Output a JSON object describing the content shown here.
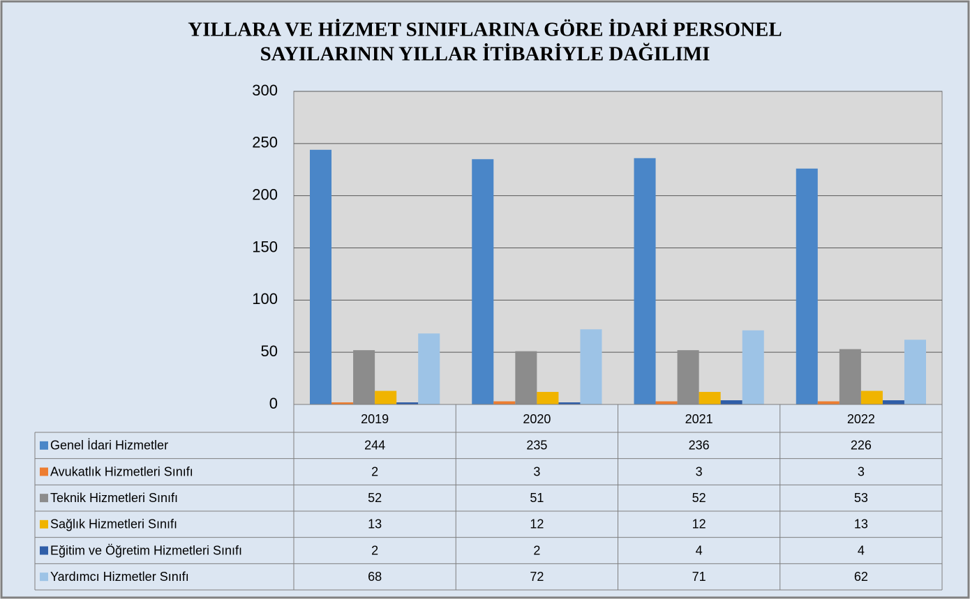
{
  "chart_data": {
    "type": "bar",
    "title": [
      "YILLARA VE HİZMET SINIFLARINA GÖRE İDARİ PERSONEL",
      "SAYILARININ YILLAR İTİBARİYLE DAĞILIMI"
    ],
    "categories": [
      "2019",
      "2020",
      "2021",
      "2022"
    ],
    "series": [
      {
        "name": "Genel İdari Hizmetler",
        "color": "#4a86c8",
        "values": [
          244,
          235,
          236,
          226
        ]
      },
      {
        "name": "Avukatlık Hizmetleri Sınıfı",
        "color": "#ed7d31",
        "values": [
          2,
          3,
          3,
          3
        ]
      },
      {
        "name": "Teknik Hizmetleri Sınıfı",
        "color": "#8c8c8c",
        "values": [
          52,
          51,
          52,
          53
        ]
      },
      {
        "name": "Sağlık Hizmetleri Sınıfı",
        "color": "#f0b400",
        "values": [
          13,
          12,
          12,
          13
        ]
      },
      {
        "name": "Eğitim ve Öğretim Hizmetleri Sınıfı",
        "color": "#2f5ea8",
        "values": [
          2,
          2,
          4,
          4
        ]
      },
      {
        "name": "Yardımcı Hizmetler Sınıfı",
        "color": "#9dc3e6",
        "values": [
          68,
          72,
          71,
          62
        ]
      }
    ],
    "ylim": [
      0,
      300
    ],
    "yticks": [
      0,
      50,
      100,
      150,
      200,
      250,
      300
    ],
    "grid": true
  }
}
